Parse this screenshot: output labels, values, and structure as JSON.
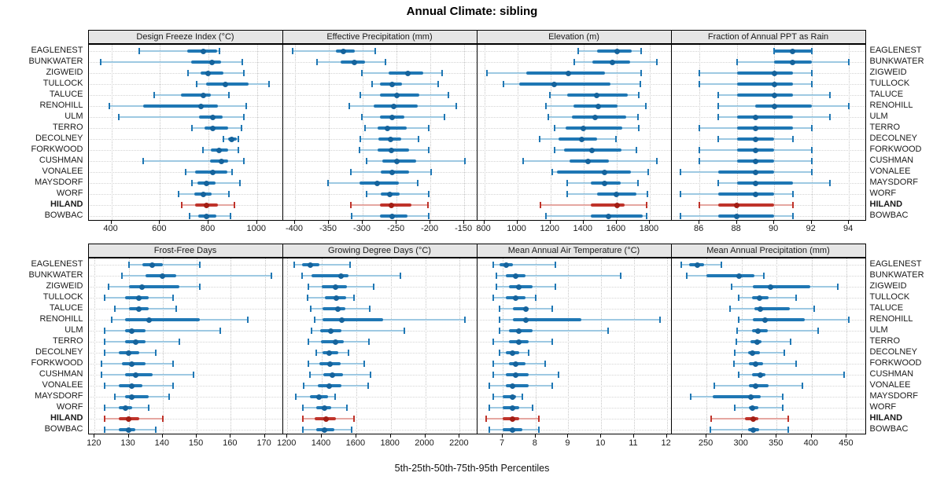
{
  "title": "Annual Climate: sibling",
  "caption": "5th-25th-50th-75th-95th Percentiles",
  "sites": [
    "EAGLENEST",
    "BUNKWATER",
    "ZIGWEID",
    "TULLOCK",
    "TALUCE",
    "RENOHILL",
    "ULM",
    "TERRO",
    "DECOLNEY",
    "FORKWOOD",
    "CUSHMAN",
    "VONALEE",
    "MAYSDORF",
    "WORF",
    "HILAND",
    "BOWBAC"
  ],
  "highlight_site": "HILAND",
  "percentile_labels": [
    "5th",
    "25th",
    "50th",
    "75th",
    "95th"
  ],
  "colors": {
    "blue_main": "#1f77b4",
    "blue_light": "#9ec9e2",
    "blue_dot": "#15639c",
    "red_main": "#bf332a",
    "red_light": "#e5a7a1",
    "red_dot": "#a21e14",
    "strip_bg": "#e6e6e6",
    "frame": "#000000",
    "grid_v": "#c6c6c6",
    "grid_h": "#d4d4d4"
  },
  "chart_data": [
    {
      "type": "dotplot-percentile",
      "title": "Design Freeze Index (°C)",
      "xlim": [
        306,
        1106
      ],
      "ticks": [
        400,
        600,
        800,
        1000
      ],
      "values": [
        [
          515,
          712,
          779,
          836,
          846
        ],
        [
          355,
          730,
          813,
          853,
          940
        ],
        [
          717,
          768,
          798,
          862,
          945
        ],
        [
          752,
          789,
          868,
          966,
          1050
        ],
        [
          577,
          687,
          779,
          811,
          884
        ],
        [
          392,
          530,
          770,
          838,
          955
        ],
        [
          430,
          762,
          818,
          859,
          945
        ],
        [
          733,
          784,
          818,
          880,
          937
        ],
        [
          862,
          880,
          897,
          916,
          923
        ],
        [
          776,
          811,
          845,
          880,
          923
        ],
        [
          530,
          808,
          854,
          880,
          945
        ],
        [
          707,
          744,
          818,
          878,
          897
        ],
        [
          733,
          755,
          792,
          830,
          931
        ],
        [
          677,
          741,
          779,
          813,
          884
        ],
        [
          691,
          744,
          791,
          838,
          907
        ],
        [
          723,
          759,
          792,
          832,
          889
        ]
      ]
    },
    {
      "type": "dotplot-percentile",
      "title": "Effective Precipitation (mm)",
      "xlim": [
        -418,
        -131
      ],
      "ticks": [
        -400,
        -350,
        -300,
        -250,
        -200,
        -150
      ],
      "values": [
        [
          -403,
          -340,
          -328,
          -312,
          -281
        ],
        [
          -368,
          -333,
          -312,
          -297,
          -266
        ],
        [
          -301,
          -262,
          -233,
          -211,
          -183
        ],
        [
          -286,
          -274,
          -256,
          -242,
          -189
        ],
        [
          -303,
          -274,
          -249,
          -216,
          -173
        ],
        [
          -320,
          -284,
          -254,
          -219,
          -162
        ],
        [
          -301,
          -274,
          -257,
          -239,
          -179
        ],
        [
          -296,
          -278,
          -263,
          -235,
          -203
        ],
        [
          -304,
          -277,
          -259,
          -243,
          -218
        ],
        [
          -305,
          -278,
          -258,
          -231,
          -203
        ],
        [
          -294,
          -271,
          -250,
          -221,
          -149
        ],
        [
          -317,
          -273,
          -256,
          -231,
          -199
        ],
        [
          -351,
          -305,
          -279,
          -247,
          -219
        ],
        [
          -294,
          -273,
          -260,
          -245,
          -203
        ],
        [
          -317,
          -274,
          -258,
          -228,
          -204
        ],
        [
          -316,
          -274,
          -256,
          -234,
          -203
        ]
      ]
    },
    {
      "type": "dotplot-percentile",
      "title": "Elevation (m)",
      "xlim": [
        757,
        1931
      ],
      "ticks": [
        800,
        1000,
        1200,
        1400,
        1600,
        1800
      ],
      "values": [
        [
          1366,
          1481,
          1605,
          1690,
          1746
        ],
        [
          1342,
          1451,
          1574,
          1682,
          1845
        ],
        [
          816,
          1055,
          1306,
          1531,
          1746
        ],
        [
          916,
          1012,
          1223,
          1561,
          1741
        ],
        [
          1196,
          1302,
          1481,
          1666,
          1733
        ],
        [
          1175,
          1337,
          1491,
          1605,
          1778
        ],
        [
          1188,
          1331,
          1470,
          1656,
          1730
        ],
        [
          1223,
          1294,
          1401,
          1634,
          1736
        ],
        [
          1135,
          1251,
          1390,
          1481,
          1598
        ],
        [
          1226,
          1283,
          1449,
          1629,
          1720
        ],
        [
          1034,
          1315,
          1427,
          1554,
          1842
        ],
        [
          1210,
          1239,
          1529,
          1685,
          1789
        ],
        [
          1299,
          1443,
          1529,
          1625,
          1730
        ],
        [
          1302,
          1481,
          1598,
          1720,
          1784
        ],
        [
          1140,
          1443,
          1602,
          1650,
          1781
        ],
        [
          1172,
          1446,
          1549,
          1757,
          1781
        ]
      ]
    },
    {
      "type": "dotplot-percentile",
      "title": "Fraction of Annual PPT as Rain",
      "xlim": [
        84.5,
        94.9
      ],
      "ticks": [
        86,
        88,
        90,
        92,
        94
      ],
      "values": [
        [
          90,
          90,
          91,
          92,
          92
        ],
        [
          88,
          90,
          91,
          92,
          94
        ],
        [
          86,
          88,
          90,
          91,
          92
        ],
        [
          86,
          88,
          90,
          91,
          92
        ],
        [
          87,
          88,
          90,
          91,
          93
        ],
        [
          87,
          89,
          90,
          92,
          94
        ],
        [
          87,
          88,
          89,
          91,
          93
        ],
        [
          86,
          88,
          89,
          91,
          92
        ],
        [
          87,
          88,
          89,
          90,
          91
        ],
        [
          86,
          88,
          89,
          90,
          92
        ],
        [
          86,
          88,
          89,
          90,
          92
        ],
        [
          85,
          87,
          89,
          90,
          92
        ],
        [
          87,
          88,
          89,
          91,
          93
        ],
        [
          85,
          87,
          89,
          90,
          91
        ],
        [
          86,
          87,
          88,
          90,
          91
        ],
        [
          85,
          87,
          88,
          90,
          91
        ]
      ]
    },
    {
      "type": "dotplot-percentile",
      "title": "Frost-Free Days",
      "xlim": [
        118.2,
        175.3
      ],
      "ticks": [
        120,
        130,
        140,
        150,
        160,
        170
      ],
      "values": [
        [
          130,
          134,
          137,
          140,
          151
        ],
        [
          128,
          135,
          140,
          144,
          172
        ],
        [
          124,
          130,
          134,
          145,
          151
        ],
        [
          123,
          129,
          133,
          136,
          143
        ],
        [
          126,
          130,
          133,
          136,
          144
        ],
        [
          125,
          129,
          136,
          151,
          165
        ],
        [
          123,
          129,
          131,
          135,
          157
        ],
        [
          123,
          129,
          132,
          135,
          145
        ],
        [
          123,
          127,
          130,
          133,
          138
        ],
        [
          122,
          128,
          131,
          135,
          143
        ],
        [
          122,
          129,
          132,
          137,
          149
        ],
        [
          123,
          127,
          131,
          134,
          143
        ],
        [
          126,
          129,
          131,
          136,
          142
        ],
        [
          123,
          127,
          129,
          131,
          136
        ],
        [
          123,
          127,
          130,
          133,
          140
        ],
        [
          123,
          127,
          130,
          132,
          138
        ]
      ]
    },
    {
      "type": "dotplot-percentile",
      "title": "Growing Degree Days (°C)",
      "xlim": [
        1174,
        2301
      ],
      "ticks": [
        1200,
        1400,
        1600,
        1800,
        2000,
        2200
      ],
      "values": [
        [
          1238,
          1284,
          1333,
          1388,
          1566
        ],
        [
          1284,
          1342,
          1513,
          1556,
          1857
        ],
        [
          1322,
          1398,
          1479,
          1544,
          1699
        ],
        [
          1318,
          1418,
          1486,
          1541,
          1589
        ],
        [
          1337,
          1403,
          1495,
          1536,
          1678
        ],
        [
          1357,
          1406,
          1516,
          1757,
          2228
        ],
        [
          1342,
          1391,
          1452,
          1516,
          1877
        ],
        [
          1322,
          1394,
          1478,
          1528,
          1673
        ],
        [
          1368,
          1403,
          1444,
          1495,
          1556
        ],
        [
          1322,
          1388,
          1449,
          1510,
          1647
        ],
        [
          1333,
          1409,
          1460,
          1525,
          1684
        ],
        [
          1296,
          1379,
          1444,
          1516,
          1669
        ],
        [
          1250,
          1330,
          1383,
          1437,
          1479
        ],
        [
          1292,
          1368,
          1414,
          1455,
          1547
        ],
        [
          1292,
          1360,
          1424,
          1482,
          1586
        ],
        [
          1292,
          1368,
          1418,
          1475,
          1571
        ]
      ]
    },
    {
      "type": "dotplot-percentile",
      "title": "Mean Annual Air Temperature (°C)",
      "xlim": [
        6.22,
        12.14
      ],
      "ticks": [
        7,
        8,
        9,
        10,
        11,
        12
      ],
      "values": [
        [
          6.7,
          6.9,
          7.1,
          7.3,
          8.6
        ],
        [
          6.8,
          7.1,
          7.4,
          7.7,
          10.6
        ],
        [
          6.8,
          7.2,
          7.5,
          7.9,
          8.6
        ],
        [
          6.7,
          7.1,
          7.4,
          7.7,
          8.0
        ],
        [
          6.9,
          7.3,
          7.7,
          7.8,
          8.5
        ],
        [
          6.9,
          7.3,
          7.7,
          9.4,
          11.8
        ],
        [
          6.9,
          7.2,
          7.5,
          7.9,
          10.2
        ],
        [
          6.7,
          7.2,
          7.5,
          7.8,
          8.5
        ],
        [
          6.9,
          7.1,
          7.3,
          7.5,
          7.8
        ],
        [
          6.7,
          7.2,
          7.4,
          7.7,
          8.3
        ],
        [
          6.7,
          7.1,
          7.4,
          7.8,
          8.7
        ],
        [
          6.6,
          7.1,
          7.3,
          7.8,
          8.5
        ],
        [
          6.7,
          7.0,
          7.3,
          7.4,
          7.6
        ],
        [
          6.6,
          7.0,
          7.3,
          7.5,
          7.9
        ],
        [
          6.5,
          7.0,
          7.3,
          7.5,
          8.1
        ],
        [
          6.6,
          7.0,
          7.3,
          7.6,
          8.1
        ]
      ]
    },
    {
      "type": "dotplot-percentile",
      "title": "Mean Annual Precipitation (mm)",
      "xlim": [
        200,
        477
      ],
      "ticks": [
        250,
        300,
        350,
        400,
        450
      ],
      "values": [
        [
          214,
          225,
          237,
          246,
          271
        ],
        [
          222,
          250,
          297,
          318,
          332
        ],
        [
          286,
          316,
          341,
          398,
          437
        ],
        [
          296,
          315,
          326,
          338,
          378
        ],
        [
          284,
          318,
          327,
          369,
          404
        ],
        [
          296,
          316,
          333,
          390,
          453
        ],
        [
          294,
          315,
          323,
          337,
          409
        ],
        [
          292,
          313,
          322,
          328,
          370
        ],
        [
          290,
          309,
          316,
          326,
          361
        ],
        [
          289,
          311,
          320,
          331,
          378
        ],
        [
          296,
          315,
          327,
          334,
          446
        ],
        [
          261,
          310,
          320,
          339,
          387
        ],
        [
          227,
          259,
          313,
          327,
          359
        ],
        [
          290,
          310,
          316,
          324,
          359
        ],
        [
          257,
          305,
          317,
          324,
          367
        ],
        [
          255,
          309,
          317,
          325,
          367
        ]
      ]
    }
  ]
}
